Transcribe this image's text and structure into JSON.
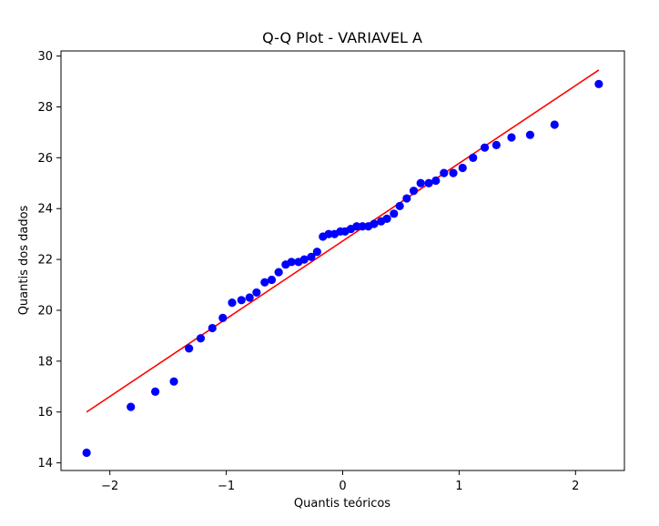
{
  "chart_data": {
    "type": "scatter",
    "title": "Q-Q Plot - VARIAVEL A",
    "xlabel": "Quantis teóricos",
    "ylabel": "Quantis dos dados",
    "xlim": [
      -2.42,
      2.42
    ],
    "ylim": [
      13.7,
      30.2
    ],
    "xticks": [
      -2,
      -1,
      0,
      1,
      2
    ],
    "xtick_labels": [
      "−2",
      "−1",
      "0",
      "1",
      "2"
    ],
    "yticks": [
      14,
      16,
      18,
      20,
      22,
      24,
      26,
      28,
      30
    ],
    "ytick_labels": [
      "14",
      "16",
      "18",
      "20",
      "22",
      "24",
      "26",
      "28",
      "30"
    ],
    "grid": false,
    "colors": {
      "points": "#0000ff",
      "line": "#ff0000"
    },
    "points": [
      {
        "x": -2.2,
        "y": 14.4
      },
      {
        "x": -1.82,
        "y": 16.2
      },
      {
        "x": -1.61,
        "y": 16.8
      },
      {
        "x": -1.45,
        "y": 17.2
      },
      {
        "x": -1.32,
        "y": 18.5
      },
      {
        "x": -1.22,
        "y": 18.9
      },
      {
        "x": -1.12,
        "y": 19.3
      },
      {
        "x": -1.03,
        "y": 19.7
      },
      {
        "x": -0.95,
        "y": 20.3
      },
      {
        "x": -0.87,
        "y": 20.4
      },
      {
        "x": -0.8,
        "y": 20.5
      },
      {
        "x": -0.74,
        "y": 20.7
      },
      {
        "x": -0.67,
        "y": 21.1
      },
      {
        "x": -0.61,
        "y": 21.2
      },
      {
        "x": -0.55,
        "y": 21.5
      },
      {
        "x": -0.49,
        "y": 21.8
      },
      {
        "x": -0.44,
        "y": 21.9
      },
      {
        "x": -0.38,
        "y": 21.9
      },
      {
        "x": -0.33,
        "y": 22.0
      },
      {
        "x": -0.27,
        "y": 22.1
      },
      {
        "x": -0.22,
        "y": 22.3
      },
      {
        "x": -0.17,
        "y": 22.9
      },
      {
        "x": -0.12,
        "y": 23.0
      },
      {
        "x": -0.07,
        "y": 23.0
      },
      {
        "x": -0.02,
        "y": 23.1
      },
      {
        "x": 0.02,
        "y": 23.1
      },
      {
        "x": 0.07,
        "y": 23.2
      },
      {
        "x": 0.12,
        "y": 23.3
      },
      {
        "x": 0.17,
        "y": 23.3
      },
      {
        "x": 0.22,
        "y": 23.3
      },
      {
        "x": 0.27,
        "y": 23.4
      },
      {
        "x": 0.33,
        "y": 23.5
      },
      {
        "x": 0.38,
        "y": 23.6
      },
      {
        "x": 0.44,
        "y": 23.8
      },
      {
        "x": 0.49,
        "y": 24.1
      },
      {
        "x": 0.55,
        "y": 24.4
      },
      {
        "x": 0.61,
        "y": 24.7
      },
      {
        "x": 0.67,
        "y": 25.0
      },
      {
        "x": 0.74,
        "y": 25.0
      },
      {
        "x": 0.8,
        "y": 25.1
      },
      {
        "x": 0.87,
        "y": 25.4
      },
      {
        "x": 0.95,
        "y": 25.4
      },
      {
        "x": 1.03,
        "y": 25.6
      },
      {
        "x": 1.12,
        "y": 26.0
      },
      {
        "x": 1.22,
        "y": 26.4
      },
      {
        "x": 1.32,
        "y": 26.5
      },
      {
        "x": 1.45,
        "y": 26.8
      },
      {
        "x": 1.61,
        "y": 26.9
      },
      {
        "x": 1.82,
        "y": 27.3
      },
      {
        "x": 2.2,
        "y": 28.9
      }
    ],
    "reference_line": {
      "x": [
        -2.2,
        2.2
      ],
      "y": [
        16.0,
        29.45
      ]
    }
  }
}
